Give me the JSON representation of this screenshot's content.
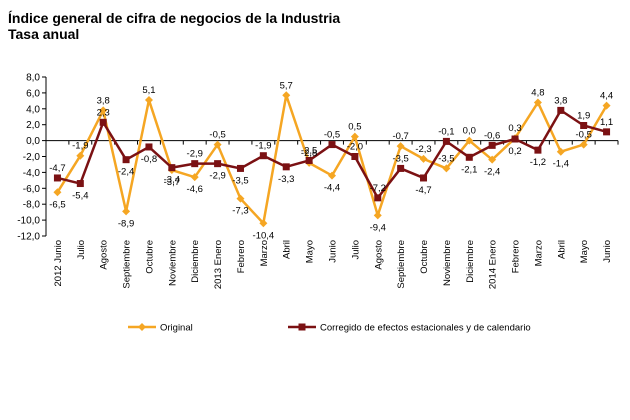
{
  "chart_data": {
    "type": "line",
    "title": "Índice general de cifra de negocios de la Industria",
    "subtitle": "Tasa anual",
    "xlabel": "",
    "ylabel": "",
    "ylim": [
      -12,
      8
    ],
    "yticks": [
      "8,0",
      "6,0",
      "4,0",
      "2,0",
      "0,0",
      "-2,0",
      "-4,0",
      "-6,0",
      "-8,0",
      "-10,0",
      "-12,0"
    ],
    "grid": false,
    "legend": "bottom",
    "categories": [
      "2012 Junio",
      "Julio",
      "Agosto",
      "Septiembre",
      "Octubre",
      "Noviembre",
      "Diciembre",
      "2013 Enero",
      "Febrero",
      "Marzo",
      "Abril",
      "Mayo",
      "Junio",
      "Julio",
      "Agosto",
      "Septiembre",
      "Octubre",
      "Noviembre",
      "Diciembre",
      "2014 Enero",
      "Febrero",
      "Marzo",
      "Abril",
      "Mayo",
      "Junio"
    ],
    "series": [
      {
        "name": "Original",
        "color": "#f5a623",
        "marker": "diamond",
        "values": [
          -6.5,
          -1.9,
          3.8,
          -8.9,
          5.1,
          -3.7,
          -4.6,
          -0.5,
          -7.3,
          -10.4,
          5.7,
          -2.8,
          -4.4,
          0.5,
          -9.4,
          -0.7,
          -2.3,
          -3.5,
          0.0,
          -2.4,
          0.3,
          4.8,
          -1.4,
          -0.5,
          4.4
        ],
        "labels": [
          "-6,5",
          "-1,9",
          "3,8",
          "-8,9",
          "5,1",
          "-3,7",
          "-4,6",
          "-0,5",
          "-7,3",
          "-10,4",
          "5,7",
          "-2,8",
          "-4,4",
          "0,5",
          "-9,4",
          "-0,7",
          "-2,3",
          "-3,5",
          "0,0",
          "-2,4",
          "0,3",
          "4,8",
          "-1,4",
          "-0,5",
          "4,4"
        ]
      },
      {
        "name": "Corregido de efectos estacionales y de calendario",
        "color": "#7b1113",
        "marker": "square",
        "values": [
          -4.7,
          -5.4,
          2.3,
          -2.4,
          -0.8,
          -3.4,
          -2.9,
          -2.9,
          -3.5,
          -1.9,
          -3.3,
          -2.5,
          -0.5,
          -2.0,
          -7.2,
          -3.5,
          -4.7,
          -0.1,
          -2.1,
          -0.6,
          0.2,
          -1.2,
          3.8,
          1.9,
          1.1
        ],
        "labels": [
          "-4,7",
          "-5,4",
          "2,3",
          "-2,4",
          "-0,8",
          "-3,4",
          "-2,9",
          "-2,9",
          "-3,5",
          "-1,9",
          "-3,3",
          "-2,5",
          "-0,5",
          "-2,0",
          "-7,2",
          "-3,5",
          "-4,7",
          "-0,1",
          "-2,1",
          "-0,6",
          "0,2",
          "-1,2",
          "3,8",
          "1,9",
          "1,1"
        ]
      }
    ]
  }
}
